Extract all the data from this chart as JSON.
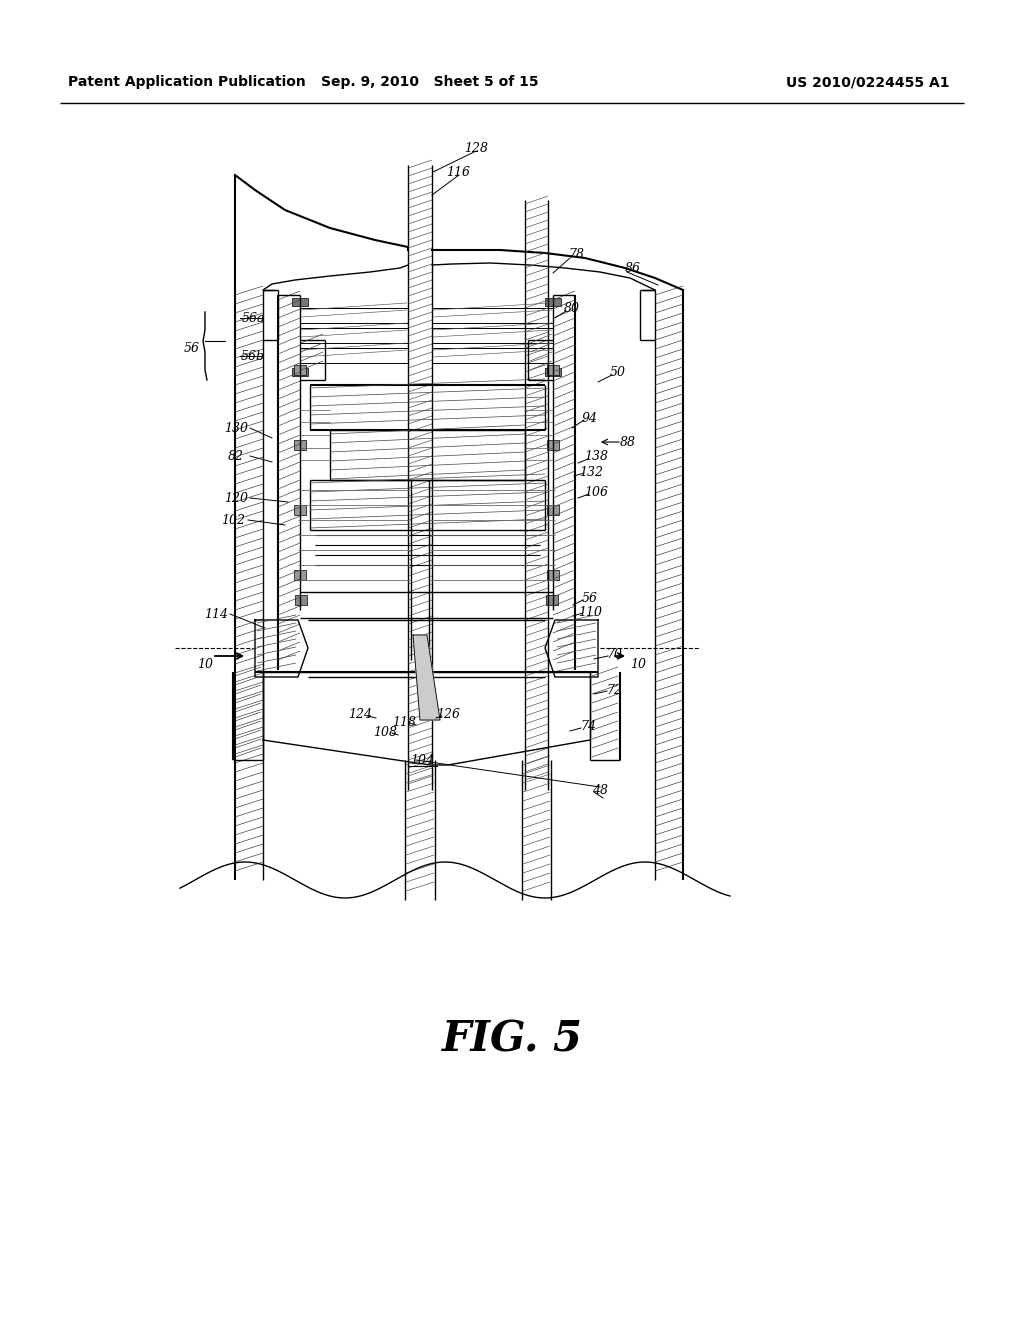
{
  "background_color": "#ffffff",
  "header_left": "Patent Application Publication",
  "header_center": "Sep. 9, 2010   Sheet 5 of 15",
  "header_right": "US 2010/0224455 A1",
  "figure_label": "FIG. 5",
  "line_color": "#000000",
  "text_color": "#000000"
}
